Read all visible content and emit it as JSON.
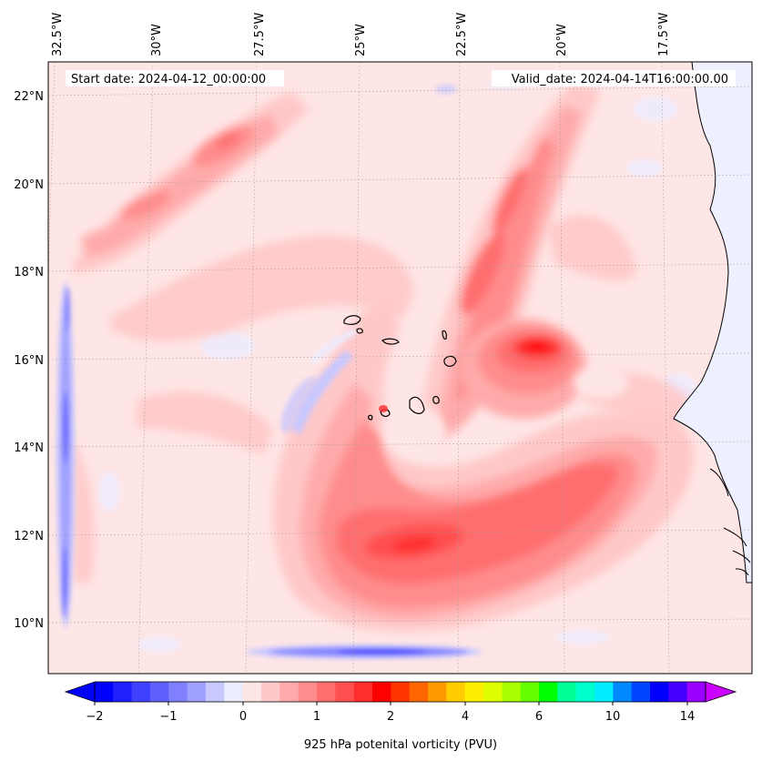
{
  "map": {
    "start_date": "Start date: 2024-04-12_00:00:00",
    "valid_date": "Valid_date: 2024-04-14T16:00:00.00",
    "lon_labels": [
      "32.5°W",
      "30°W",
      "27.5°W",
      "25°W",
      "22.5°W",
      "20°W",
      "17.5°W"
    ],
    "lat_labels": [
      "22°N",
      "20°N",
      "18°N",
      "16°N",
      "14°N",
      "12°N",
      "10°N"
    ],
    "field": "925 hPa potential vorticity",
    "region": "Cape Verde Islands and West African coast",
    "ocean_color": "#ffe6e6",
    "land_color": "#eef0ff"
  },
  "colorbar": {
    "label": "925 hPa potenital vorticity (PVU)",
    "tick_labels": [
      "−2",
      "−1",
      "0",
      "1",
      "2",
      "4",
      "6",
      "10",
      "14"
    ],
    "colors": [
      "#0000ff",
      "#2020ff",
      "#4040ff",
      "#6060ff",
      "#8080ff",
      "#a0a0ff",
      "#c8c8ff",
      "#ececff",
      "#ffe6e6",
      "#ffc8c8",
      "#ffaaaa",
      "#ff8c8c",
      "#ff6e6e",
      "#ff5050",
      "#ff2e2e",
      "#ff0000",
      "#ff3300",
      "#ff6600",
      "#ff9900",
      "#ffcc00",
      "#ffee00",
      "#ddff00",
      "#aaff00",
      "#66ff00",
      "#00ff00",
      "#00ff99",
      "#00ffcc",
      "#00eeff",
      "#0088ff",
      "#0044ff",
      "#0000ff",
      "#4400ff",
      "#9900ff"
    ],
    "extend_low_color": "#0000ff",
    "extend_high_color": "#cc00ff"
  }
}
